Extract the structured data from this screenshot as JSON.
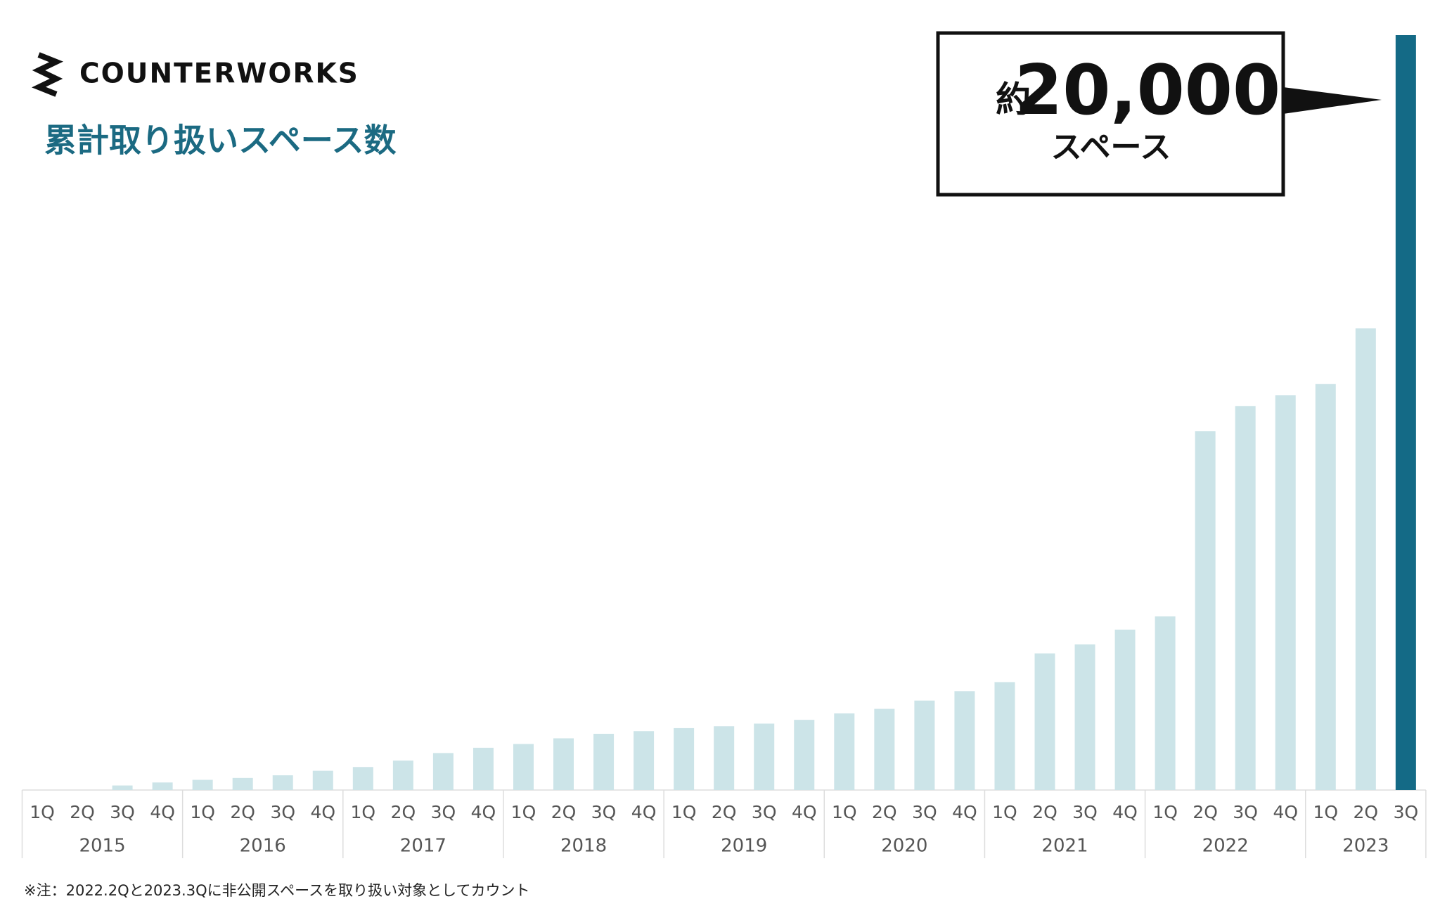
{
  "brand": "COUNTERWORKS",
  "chart_data": {
    "type": "bar",
    "title": "累計取り扱いスペース数",
    "categories": [
      "1Q",
      "2Q",
      "3Q",
      "4Q",
      "1Q",
      "2Q",
      "3Q",
      "4Q",
      "1Q",
      "2Q",
      "3Q",
      "4Q",
      "1Q",
      "2Q",
      "3Q",
      "4Q",
      "1Q",
      "2Q",
      "3Q",
      "4Q",
      "1Q",
      "2Q",
      "3Q",
      "4Q",
      "1Q",
      "2Q",
      "3Q",
      "4Q",
      "1Q",
      "2Q",
      "3Q",
      "4Q",
      "1Q",
      "2Q",
      "3Q"
    ],
    "years": [
      "2015",
      "2016",
      "2017",
      "2018",
      "2019",
      "2020",
      "2021",
      "2022",
      "2023"
    ],
    "values": [
      0,
      0,
      120,
      200,
      270,
      320,
      390,
      510,
      610,
      780,
      980,
      1120,
      1220,
      1370,
      1490,
      1560,
      1640,
      1690,
      1760,
      1860,
      2030,
      2150,
      2370,
      2620,
      2860,
      3620,
      3860,
      4250,
      4600,
      9510,
      10170,
      10460,
      10760,
      12230,
      20000
    ],
    "colors": [
      "#cce4e8",
      "#cce4e8",
      "#cce4e8",
      "#cce4e8",
      "#cce4e8",
      "#cce4e8",
      "#cce4e8",
      "#cce4e8",
      "#cce4e8",
      "#cce4e8",
      "#cce4e8",
      "#cce4e8",
      "#cce4e8",
      "#cce4e8",
      "#cce4e8",
      "#cce4e8",
      "#cce4e8",
      "#cce4e8",
      "#cce4e8",
      "#cce4e8",
      "#cce4e8",
      "#cce4e8",
      "#cce4e8",
      "#cce4e8",
      "#cce4e8",
      "#cce4e8",
      "#cce4e8",
      "#cce4e8",
      "#cce4e8",
      "#cce4e8",
      "#cce4e8",
      "#cce4e8",
      "#cce4e8",
      "#cce4e8",
      "#146a86"
    ],
    "ylim": [
      0,
      20000
    ],
    "annotation": {
      "prefix": "約",
      "value": "20,000",
      "unit": "スペース"
    },
    "note": "※注：2022.2Qと2023.3Qに非公開スペースを取り扱い対象としてカウント"
  }
}
